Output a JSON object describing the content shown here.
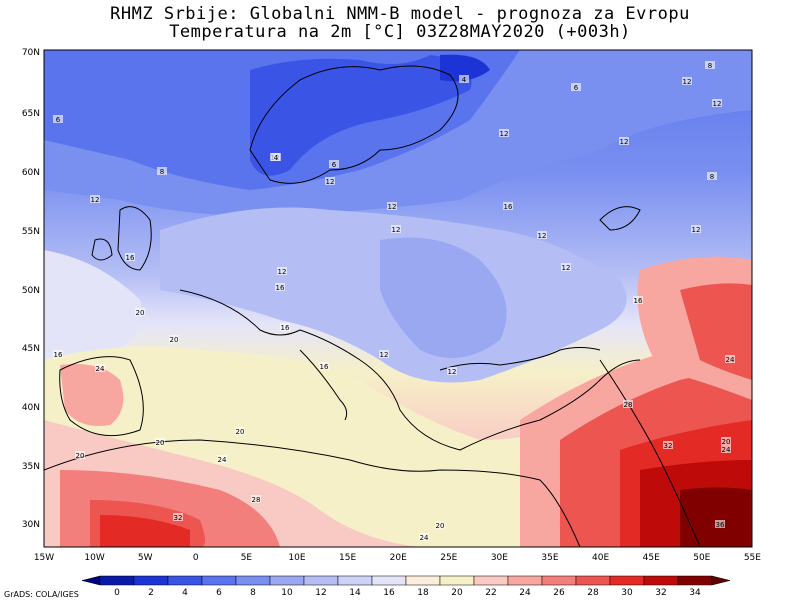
{
  "header": {
    "title_line1": "RHMZ Srbije: Globalni NMM-B model - prognoza za Evropu",
    "title_line2": "Temperatura na 2m [°C] 03Z28MAY2020 (+003h)"
  },
  "axes": {
    "lat_labels": [
      "70N",
      "65N",
      "60N",
      "55N",
      "50N",
      "45N",
      "40N",
      "35N",
      "30N"
    ],
    "lon_labels": [
      "15W",
      "10W",
      "5W",
      "0",
      "5E",
      "10E",
      "15E",
      "20E",
      "25E",
      "30E",
      "35E",
      "40E",
      "45E",
      "50E",
      "55E"
    ]
  },
  "contour_labels": [
    "4",
    "6",
    "8",
    "12",
    "12",
    "12",
    "12",
    "6",
    "12",
    "12",
    "12",
    "12",
    "8",
    "12",
    "16",
    "12",
    "12",
    "12",
    "16",
    "16",
    "12",
    "16",
    "12",
    "20",
    "20",
    "16",
    "24",
    "20",
    "20",
    "20",
    "28",
    "32",
    "24",
    "24",
    "36",
    "24",
    "28",
    "32",
    "20",
    "16",
    "12",
    "16",
    "8",
    "6",
    "4",
    "24",
    "20"
  ],
  "colorbar": {
    "labels": [
      "0",
      "2",
      "4",
      "6",
      "8",
      "10",
      "12",
      "14",
      "16",
      "18",
      "20",
      "22",
      "24",
      "26",
      "28",
      "30",
      "32",
      "34"
    ],
    "colors": [
      "#0a1aa8",
      "#1c34d6",
      "#3a55e6",
      "#5a74ee",
      "#7a90f0",
      "#9aa8f2",
      "#b4bef5",
      "#cdd2f7",
      "#e4e4f9",
      "#fbecdc",
      "#f6f0c8",
      "#f9c9c4",
      "#f7a6a0",
      "#f27f7b",
      "#ec5550",
      "#e32a24",
      "#bf0a0a",
      "#800000"
    ]
  },
  "credit": "GrADS: COLA/IGES"
}
